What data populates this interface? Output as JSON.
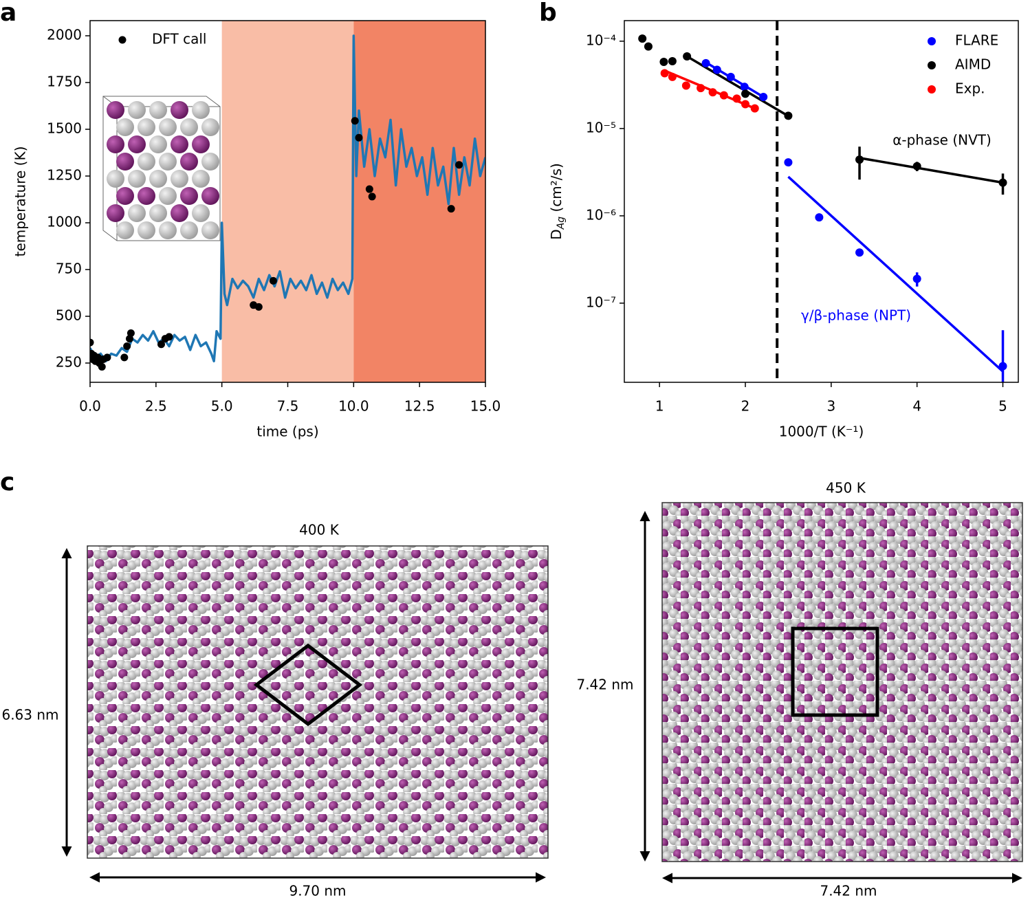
{
  "panel_labels": [
    "a",
    "b",
    "c"
  ],
  "chart_data": [
    {
      "type": "line",
      "xlabel": "time (ps)",
      "ylabel": "temperature (K)",
      "x": [
        0.0,
        0.2,
        0.4,
        0.6,
        0.8,
        1.0,
        1.2,
        1.4,
        1.6,
        1.8,
        2.0,
        2.2,
        2.4,
        2.6,
        2.8,
        3.0,
        3.2,
        3.4,
        3.6,
        3.8,
        4.0,
        4.2,
        4.4,
        4.6,
        4.7,
        4.8,
        4.95,
        5.0,
        5.1,
        5.2,
        5.4,
        5.6,
        5.8,
        6.0,
        6.2,
        6.4,
        6.6,
        6.8,
        7.0,
        7.2,
        7.4,
        7.6,
        7.8,
        8.0,
        8.2,
        8.4,
        8.6,
        8.8,
        9.0,
        9.2,
        9.4,
        9.6,
        9.8,
        9.95,
        10.0,
        10.1,
        10.2,
        10.4,
        10.6,
        10.8,
        11.0,
        11.2,
        11.4,
        11.6,
        11.8,
        12.0,
        12.2,
        12.4,
        12.6,
        12.8,
        13.0,
        13.2,
        13.4,
        13.6,
        13.8,
        14.0,
        14.2,
        14.4,
        14.6,
        14.8,
        15.0
      ],
      "values": [
        330,
        280,
        300,
        260,
        300,
        290,
        330,
        310,
        380,
        360,
        400,
        370,
        420,
        360,
        380,
        340,
        400,
        370,
        390,
        320,
        400,
        340,
        360,
        300,
        260,
        420,
        380,
        1000,
        620,
        560,
        700,
        650,
        690,
        660,
        600,
        700,
        640,
        720,
        660,
        740,
        600,
        700,
        650,
        690,
        640,
        720,
        620,
        680,
        600,
        700,
        640,
        680,
        620,
        700,
        2000,
        1250,
        1600,
        1300,
        1500,
        1250,
        1450,
        1350,
        1550,
        1200,
        1500,
        1300,
        1400,
        1250,
        1350,
        1150,
        1400,
        1200,
        1300,
        1100,
        1400,
        1150,
        1350,
        1200,
        1450,
        1250,
        1350
      ],
      "color": "#1f77b4",
      "scatter": {
        "name": "DFT call",
        "color": "#000000",
        "x": [
          0.0,
          0.05,
          0.1,
          0.15,
          0.2,
          0.3,
          0.35,
          0.45,
          0.5,
          0.65,
          1.3,
          1.4,
          1.5,
          1.55,
          2.7,
          2.85,
          3.0,
          6.2,
          6.4,
          6.95,
          10.05,
          10.2,
          10.6,
          10.7,
          13.7,
          14.0
        ],
        "values": [
          360,
          300,
          270,
          290,
          260,
          280,
          250,
          230,
          270,
          280,
          280,
          340,
          380,
          410,
          350,
          380,
          390,
          560,
          550,
          690,
          1545,
          1455,
          1180,
          1140,
          1075,
          1310
        ]
      },
      "regions": [
        {
          "from": 5,
          "to": 10,
          "color": "#f9bda6"
        },
        {
          "from": 10,
          "to": 15,
          "color": "#f28465"
        }
      ],
      "xlim": [
        0,
        15
      ],
      "ylim": [
        147,
        2081
      ],
      "xticks": [
        {
          "value": 0,
          "label": "0.0"
        },
        2.5,
        {
          "value": 5,
          "label": "5.0"
        },
        7.5,
        {
          "value": 10,
          "label": "10.0"
        },
        12.5,
        {
          "value": 15,
          "label": "15.0"
        }
      ],
      "yticks": [
        250,
        500,
        750,
        1000,
        1250,
        1500,
        1750,
        2000
      ],
      "legend": "upper left"
    },
    {
      "type": "scatter",
      "xlabel": "1000/T (K⁻¹)",
      "ylabel": {
        "main": "D",
        "sub": "Ag",
        "unit": " (cm²/s)"
      },
      "log_y": true,
      "series": [
        {
          "name": "FLARE",
          "color": "#0000ff",
          "x": [
            1.54,
            1.67,
            1.83,
            1.99,
            2.21,
            2.5,
            2.86,
            3.33,
            4.0,
            5.0
          ],
          "values": [
            5.6e-05,
            4.7e-05,
            3.9e-05,
            3e-05,
            2.3e-05,
            4.1e-06,
            9.6e-07,
            3.8e-07,
            1.9e-07,
            1.9e-08
          ],
          "errors": [
            null,
            null,
            null,
            null,
            null,
            null,
            null,
            null,
            3.5e-08,
            3e-08
          ]
        },
        {
          "name": "AIMD",
          "color": "#000000",
          "x": [
            0.8,
            0.87,
            1.05,
            1.15,
            1.32,
            2.0,
            2.5,
            3.33,
            4.0,
            5.0
          ],
          "values": [
            0.000107,
            8.7e-05,
            5.8e-05,
            5.9e-05,
            6.7e-05,
            2.5e-05,
            1.4e-05,
            4.4e-06,
            3.7e-06,
            2.4e-06
          ],
          "errors": [
            null,
            null,
            null,
            null,
            null,
            null,
            null,
            1.8e-06,
            4.5e-07,
            6.5e-07
          ]
        },
        {
          "name": "Exp.",
          "color": "#ff0000",
          "x": [
            1.06,
            1.15,
            1.31,
            1.48,
            1.62,
            1.75,
            1.9,
            2.0,
            2.11
          ],
          "values": [
            4.3e-05,
            3.9e-05,
            3.1e-05,
            2.9e-05,
            2.6e-05,
            2.4e-05,
            2.2e-05,
            1.9e-05,
            1.7e-05
          ]
        }
      ],
      "fits": [
        {
          "color": "#0000ff",
          "x": [
            1.53,
            2.21
          ],
          "values": [
            5.8e-05,
            2.3e-05
          ]
        },
        {
          "color": "#0000ff",
          "x": [
            2.5,
            5.0
          ],
          "values": [
            2.8e-06,
            1.65e-08
          ]
        },
        {
          "color": "#000000",
          "x": [
            1.32,
            2.5
          ],
          "values": [
            6.7e-05,
            1.39e-05
          ]
        },
        {
          "color": "#000000",
          "x": [
            3.33,
            5.0
          ],
          "values": [
            4.6e-06,
            2.4e-06
          ]
        },
        {
          "color": "#ff0000",
          "x": [
            1.06,
            2.11
          ],
          "values": [
            4.6e-05,
            1.7e-05
          ]
        }
      ],
      "vline": 2.37,
      "annotations": [
        {
          "text": "α-phase (NVT)",
          "color": "#000000"
        },
        {
          "text": "γ/β-phase (NPT)",
          "color": "#0000ff"
        }
      ],
      "xlim": [
        0.59,
        5.18
      ],
      "ylim": [
        1.24e-08,
        0.000172
      ],
      "xticks": [
        1,
        2,
        3,
        4,
        5
      ],
      "yticks": [
        {
          "value": 0.0001,
          "label": "10⁻⁴"
        },
        {
          "value": 1e-05,
          "label": "10⁻⁵"
        },
        {
          "value": 1e-06,
          "label": "10⁻⁶"
        },
        {
          "value": 1e-07,
          "label": "10⁻⁷"
        }
      ],
      "legend": "upper right"
    }
  ],
  "structures": [
    {
      "label": "400 K",
      "height": "6.63 nm",
      "width": "9.70 nm"
    },
    {
      "label": "450 K",
      "height": "7.42 nm",
      "width": "7.42 nm"
    }
  ]
}
